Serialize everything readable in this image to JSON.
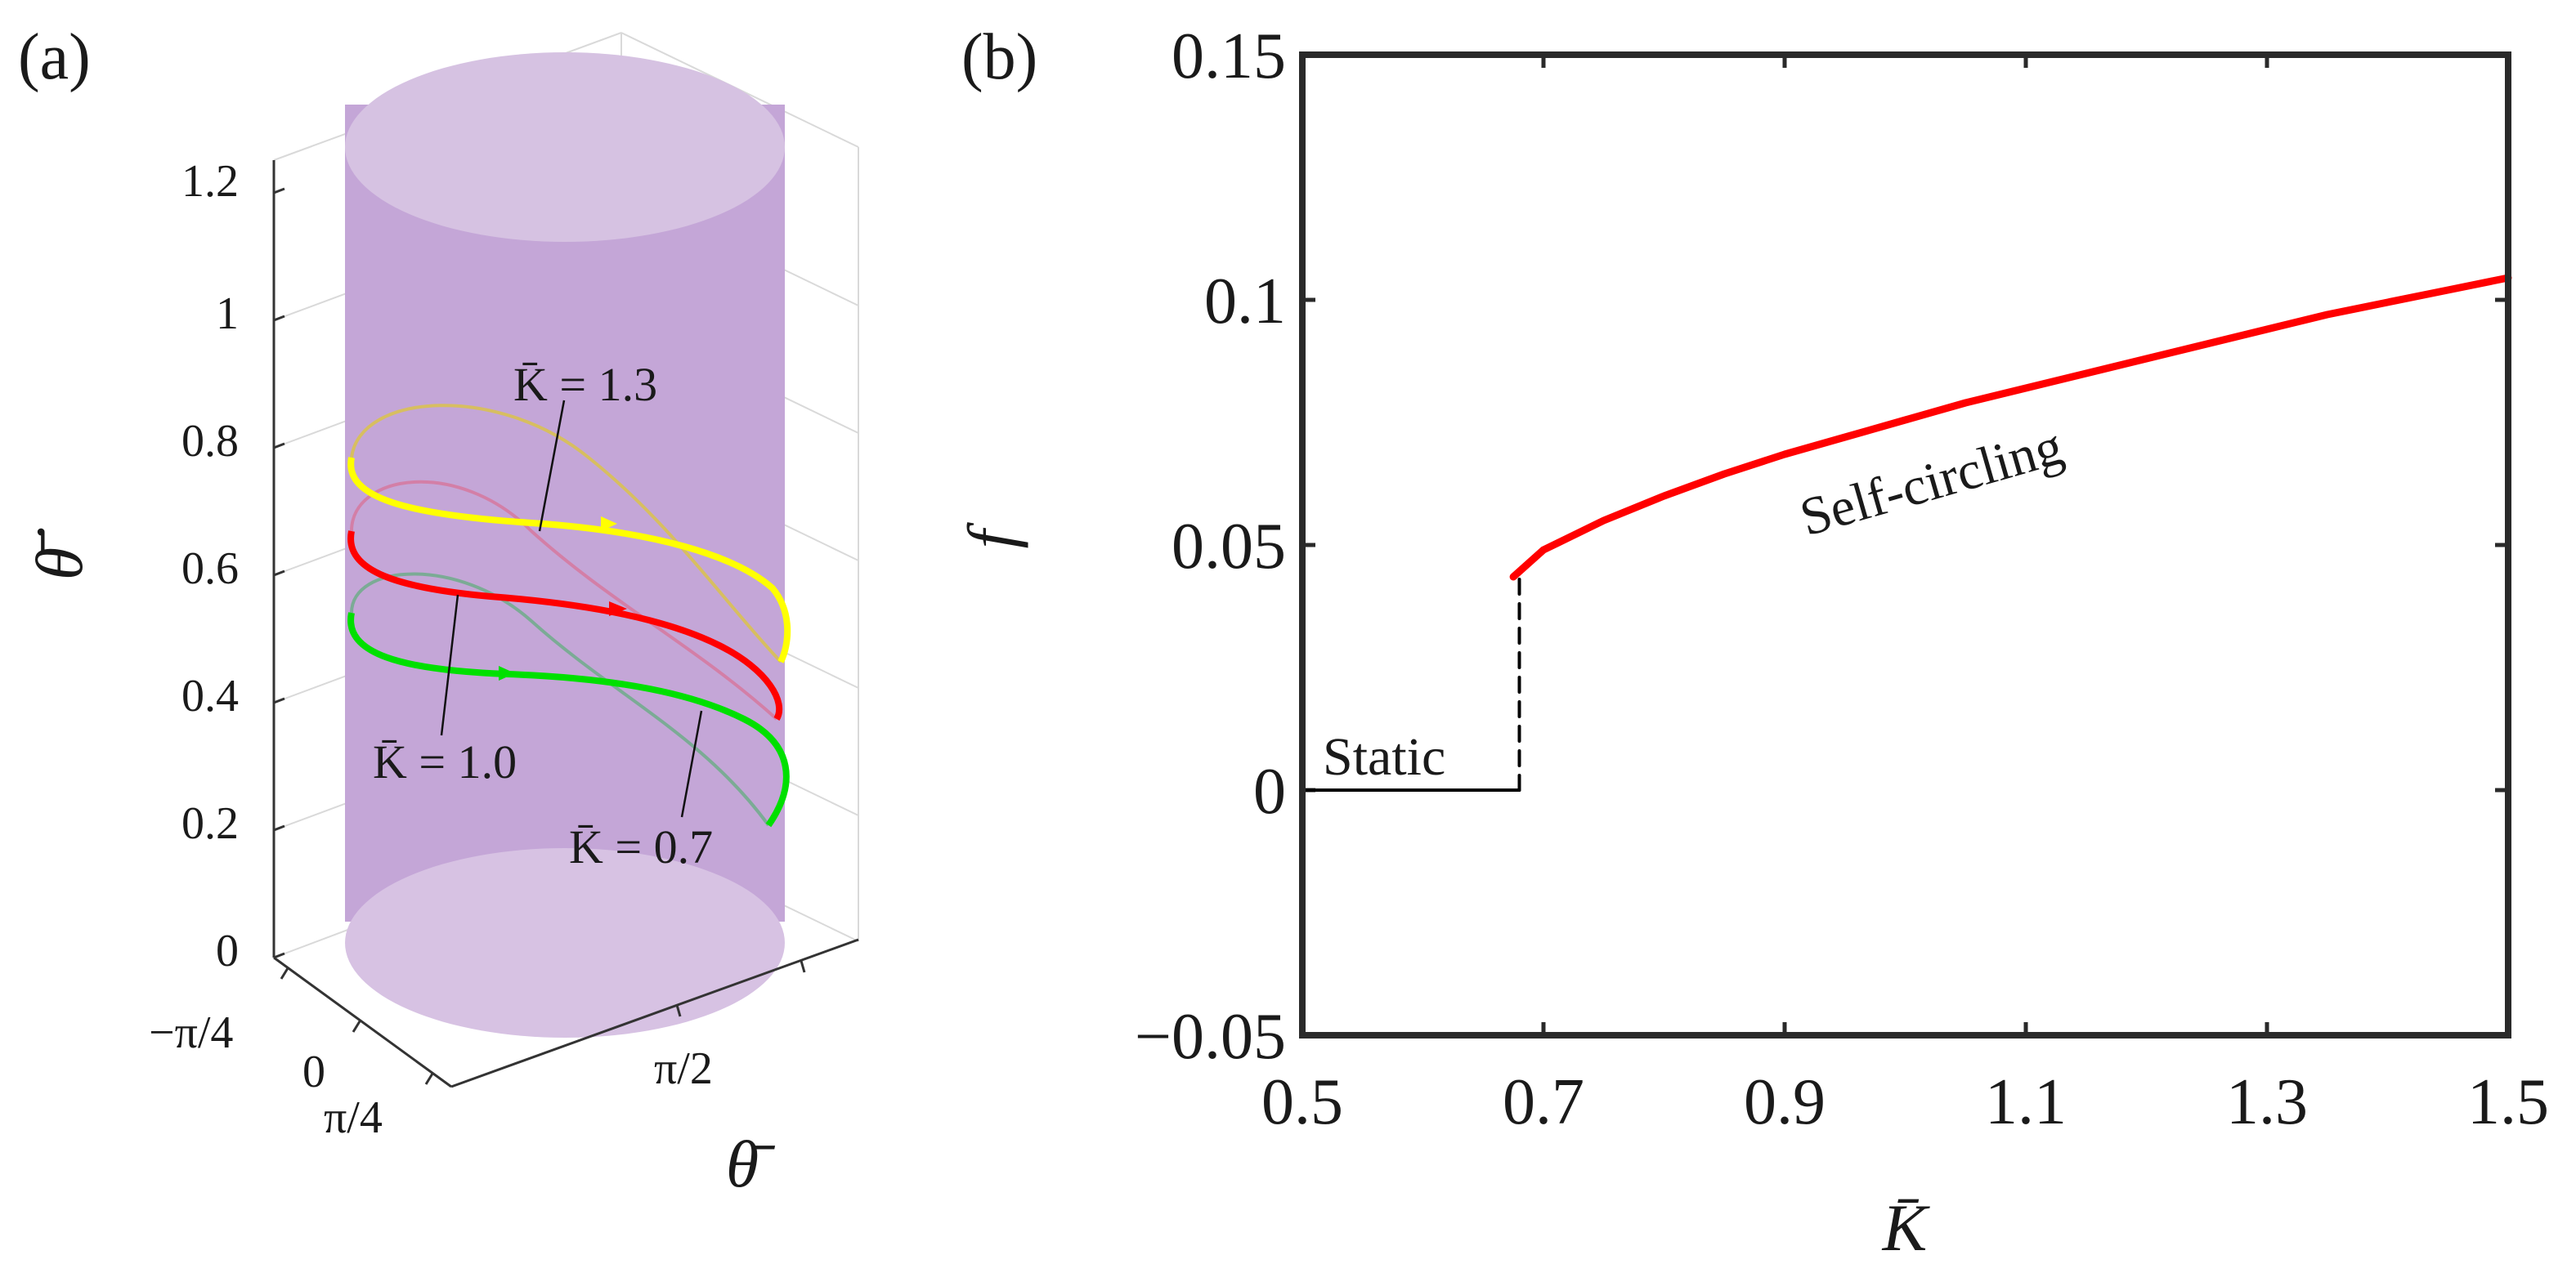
{
  "chart_data": [
    {
      "panel_label": "(a)",
      "type": "line",
      "projection": "3d",
      "zlabel": "θ̇̄",
      "xlabel": "θ̄",
      "ylabel": "",
      "z_ticks": [
        "0",
        "0.2",
        "0.4",
        "0.6",
        "0.8",
        "1",
        "1.2"
      ],
      "y_ticks": [
        "−π/4",
        "0",
        "π/4"
      ],
      "x_ticks": [
        "π/2"
      ],
      "z_range": [
        0,
        1.2
      ],
      "surface": "cylinder",
      "surface_color": "#c8a8d8",
      "series": [
        {
          "name": "K̄ = 1.3",
          "color": "#ffff00",
          "annotation": "K̄ = 1.3"
        },
        {
          "name": "K̄ = 1.0",
          "color": "#ff0000",
          "annotation": "K̄ = 1.0"
        },
        {
          "name": "K̄ = 0.7",
          "color": "#00e000",
          "annotation": "K̄ = 0.7"
        }
      ]
    },
    {
      "panel_label": "(b)",
      "type": "line",
      "xlabel": "K̄",
      "ylabel": "f",
      "xlim": [
        0.5,
        1.5
      ],
      "ylim": [
        -0.05,
        0.15
      ],
      "x_ticks": [
        "0.5",
        "0.7",
        "0.9",
        "1.1",
        "1.3",
        "1.5"
      ],
      "x_tick_values": [
        0.5,
        0.7,
        0.9,
        1.1,
        1.3,
        1.5
      ],
      "y_ticks": [
        "−0.05",
        "0",
        "0.05",
        "0.1",
        "0.15"
      ],
      "y_tick_values": [
        -0.05,
        0,
        0.05,
        0.1,
        0.15
      ],
      "series": [
        {
          "name": "Static",
          "color": "#000000",
          "style": "solid",
          "x": [
            0.5,
            0.68
          ],
          "y": [
            0,
            0
          ]
        },
        {
          "name": "transition",
          "color": "#000000",
          "style": "dashed",
          "x": [
            0.68,
            0.68
          ],
          "y": [
            0,
            0.043
          ]
        },
        {
          "name": "Self-circling",
          "color": "#ff0000",
          "style": "solid",
          "x": [
            0.675,
            0.7,
            0.75,
            0.8,
            0.85,
            0.9,
            0.95,
            1.0,
            1.05,
            1.1,
            1.15,
            1.2,
            1.25,
            1.3,
            1.35,
            1.4,
            1.45,
            1.5
          ],
          "y": [
            0.0435,
            0.049,
            0.055,
            0.06,
            0.0645,
            0.0685,
            0.072,
            0.0755,
            0.079,
            0.082,
            0.085,
            0.088,
            0.091,
            0.094,
            0.097,
            0.0995,
            0.102,
            0.1045
          ]
        }
      ],
      "annotations": {
        "static": "Static",
        "self_circling": "Self-circling"
      }
    }
  ]
}
